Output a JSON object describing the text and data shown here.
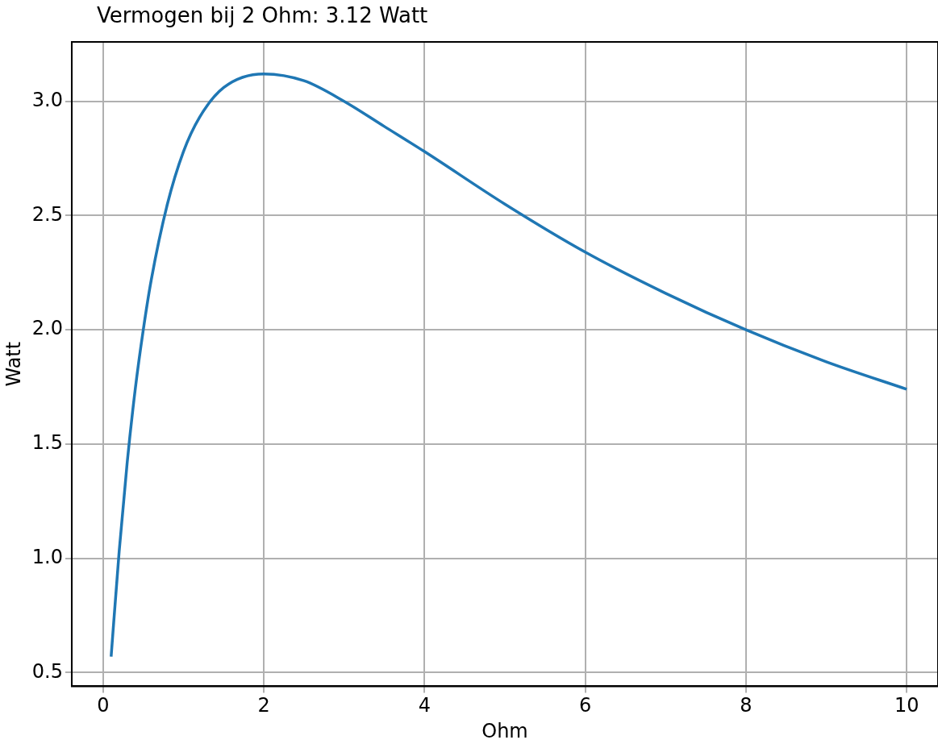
{
  "chart_data": {
    "type": "line",
    "title": "Vermogen bij 2 Ohm: 3.12 Watt",
    "xlabel": "Ohm",
    "ylabel": "Watt",
    "x": [
      0.1,
      0.2,
      0.3,
      0.4,
      0.5,
      0.6,
      0.8,
      1.0,
      1.2,
      1.5,
      2,
      2.5,
      3,
      3.5,
      4,
      5,
      6,
      7,
      8,
      9,
      10
    ],
    "series": [
      {
        "color": "#1f77b4",
        "values": [
          0.57,
          1.03,
          1.42,
          1.74,
          2.0,
          2.22,
          2.55,
          2.78,
          2.93,
          3.06,
          3.12,
          3.09,
          3.0,
          2.89,
          2.78,
          2.55,
          2.34,
          2.16,
          2.0,
          1.86,
          1.74
        ]
      }
    ],
    "xlim": [
      -0.39,
      10.39
    ],
    "ylim": [
      0.44,
      3.26
    ],
    "xticks": [
      0,
      2,
      4,
      6,
      8,
      10
    ],
    "yticks": [
      {
        "value": 0.5,
        "label": "0.5"
      },
      {
        "value": 1.0,
        "label": "1.0"
      },
      {
        "value": 1.5,
        "label": "1.5"
      },
      {
        "value": 2.0,
        "label": "2.0"
      },
      {
        "value": 2.5,
        "label": "2.5"
      },
      {
        "value": 3.0,
        "label": "3.0"
      }
    ],
    "grid": true,
    "legend": false,
    "marker": "none",
    "line_style": "solid"
  }
}
